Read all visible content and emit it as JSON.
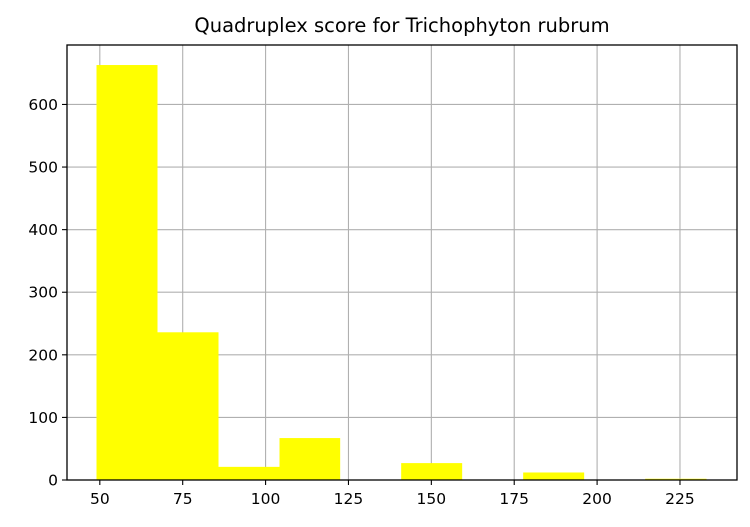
{
  "chart_data": {
    "type": "bar",
    "title": "Quadruplex score for Trichophyton rubrum",
    "xlabel": "",
    "ylabel": "",
    "xlim": [
      40.1,
      242.2
    ],
    "ylim": [
      0,
      695
    ],
    "xticks": [
      50,
      75,
      100,
      125,
      150,
      175,
      200,
      225
    ],
    "yticks": [
      0,
      100,
      200,
      300,
      400,
      500,
      600
    ],
    "grid": true,
    "bar_color": "#ffff00",
    "bins": [
      {
        "x0": 49.0,
        "x1": 67.4,
        "count": 663
      },
      {
        "x0": 67.4,
        "x1": 85.8,
        "count": 236
      },
      {
        "x0": 85.8,
        "x1": 104.2,
        "count": 21
      },
      {
        "x0": 104.2,
        "x1": 122.5,
        "count": 67
      },
      {
        "x0": 122.5,
        "x1": 140.9,
        "count": 0
      },
      {
        "x0": 140.9,
        "x1": 159.3,
        "count": 27
      },
      {
        "x0": 159.3,
        "x1": 177.7,
        "count": 0
      },
      {
        "x0": 177.7,
        "x1": 196.1,
        "count": 12
      },
      {
        "x0": 196.1,
        "x1": 214.5,
        "count": 0
      },
      {
        "x0": 214.5,
        "x1": 233.0,
        "count": 2
      }
    ]
  }
}
